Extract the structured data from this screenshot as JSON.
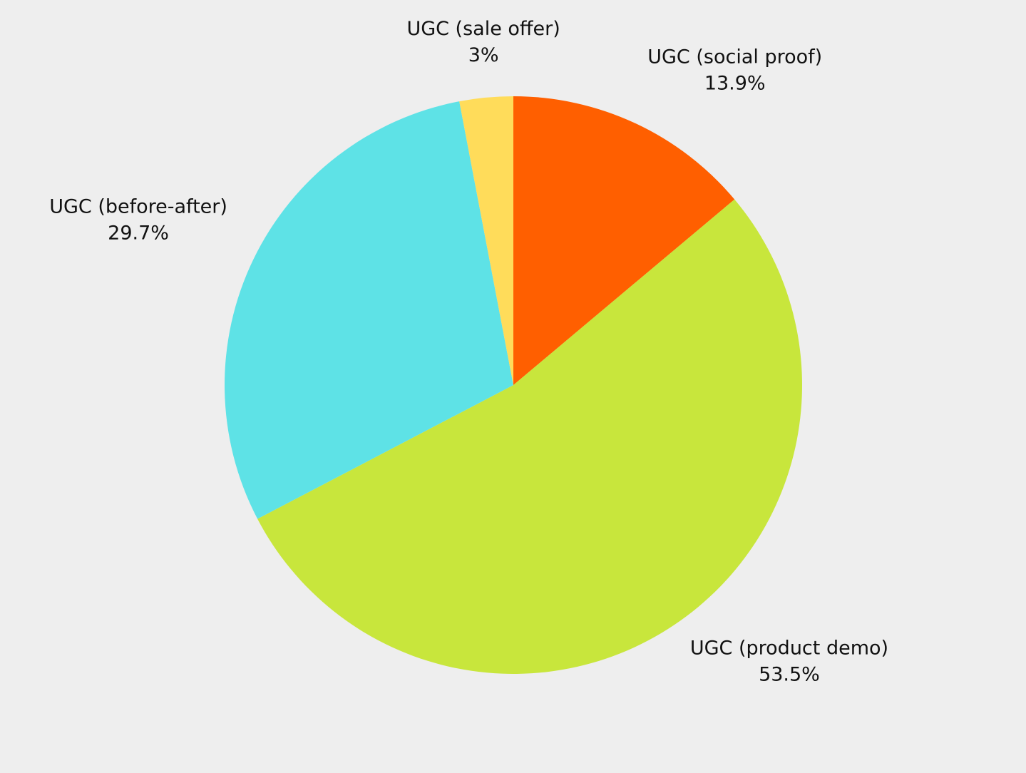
{
  "chart_data": {
    "type": "pie",
    "categories": [
      "UGC (social proof)",
      "UGC (product demo)",
      "UGC (before-after)",
      "UGC (sale offer)"
    ],
    "values": [
      13.9,
      53.5,
      29.7,
      3
    ],
    "value_labels": [
      "13.9%",
      "53.5%",
      "29.7%",
      "3%"
    ],
    "colors": [
      "#ff5f00",
      "#c8e63c",
      "#5ee2e6",
      "#ffdc5a"
    ]
  }
}
